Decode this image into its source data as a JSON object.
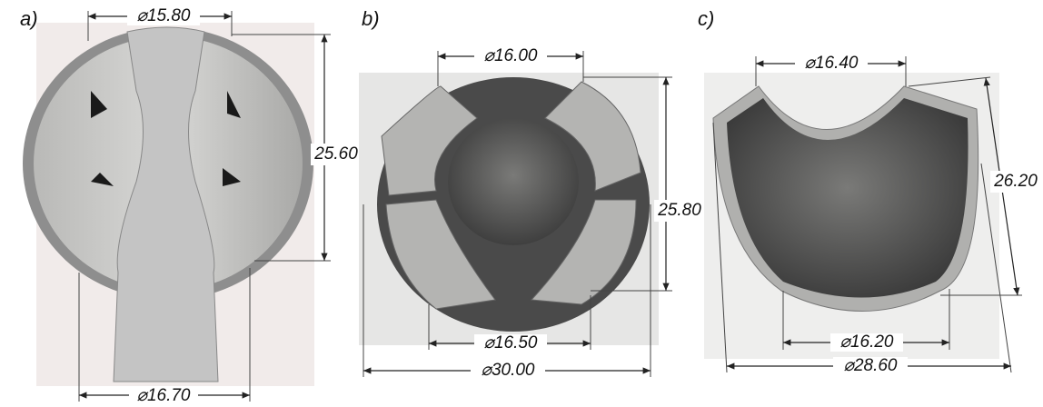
{
  "panels": [
    {
      "label": "a)",
      "top": "⌀15.80",
      "side": "25.60",
      "bottom": "⌀16.70"
    },
    {
      "label": "b)",
      "top": "⌀16.00",
      "side": "25.80",
      "inner_bottom": "⌀16.50",
      "bottom": "⌀30.00"
    },
    {
      "label": "c)",
      "top": "⌀16.40",
      "side": "26.20",
      "inner_bottom": "⌀16.20",
      "bottom": "⌀28.60"
    }
  ]
}
